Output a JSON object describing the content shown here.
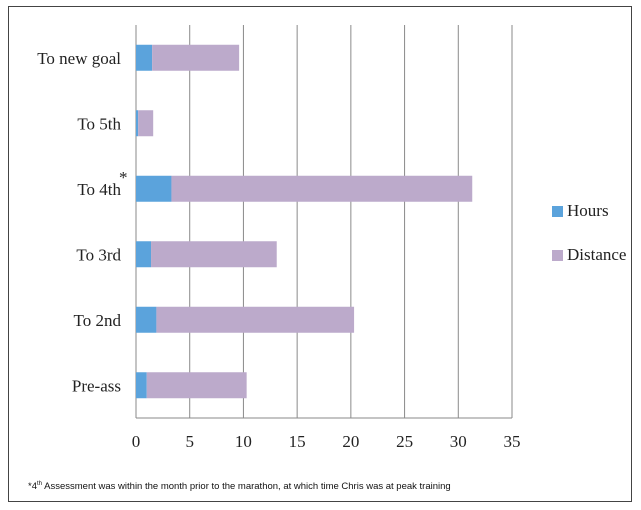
{
  "chart_data": {
    "type": "bar",
    "orientation": "horizontal",
    "stacked": true,
    "categories": [
      "To new goal",
      "To 5th",
      "To 4th",
      "To 3rd",
      "To 2nd",
      "Pre-ass"
    ],
    "category_marks": [
      "",
      "",
      "*",
      "",
      "",
      ""
    ],
    "series": [
      {
        "name": "Hours",
        "color": "#5ba3dc",
        "values": [
          1.5,
          0.2,
          3.3,
          1.4,
          1.9,
          1.0
        ]
      },
      {
        "name": "Distance",
        "color": "#bcaacb",
        "values": [
          8.1,
          1.4,
          28.0,
          11.7,
          18.4,
          9.3
        ]
      }
    ],
    "xlim": [
      0,
      35
    ],
    "xticks": [
      0,
      5,
      10,
      15,
      20,
      25,
      30,
      35
    ],
    "grid": "vertical",
    "legend_position": "right",
    "footnote": {
      "mark": "*",
      "ordinal_num": "4",
      "ordinal_sup": "th",
      "text": " Assessment was within the month prior to the marathon, at which time Chris was at peak training"
    }
  }
}
